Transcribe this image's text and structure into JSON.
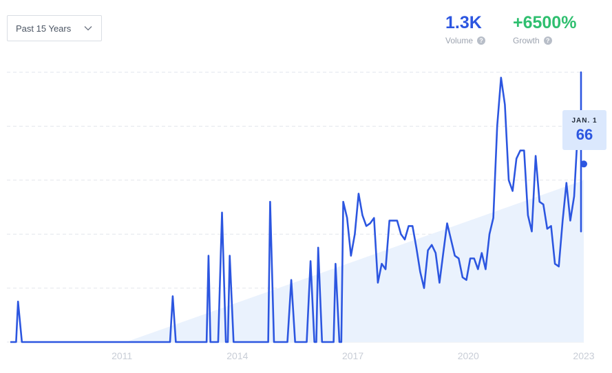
{
  "range_selector": {
    "label": "Past 15 Years",
    "icon": "chevron-down-icon"
  },
  "metrics": {
    "volume": {
      "value": "1.3K",
      "label": "Volume",
      "icon": "help-icon"
    },
    "growth": {
      "value": "+6500%",
      "label": "Growth",
      "icon": "help-icon"
    }
  },
  "tooltip": {
    "date": "JAN. 1",
    "value": "66"
  },
  "colors": {
    "line": "#2c56e0",
    "trend_fill": "#eaf2fd",
    "growth": "#2fbf6f",
    "grid": "#e2e6ec",
    "tick": "#c8cdd6"
  },
  "chart_data": {
    "type": "line",
    "title": "",
    "xlabel": "",
    "ylabel": "",
    "x_ticks": [
      "2011",
      "2014",
      "2017",
      "2020",
      "2023"
    ],
    "xlim": [
      2008.1,
      2023.0
    ],
    "ylim": [
      0,
      100
    ],
    "grid": true,
    "series": [
      {
        "values": [
          [
            2008.1,
            0
          ],
          [
            2008.25,
            0
          ],
          [
            2008.3,
            15
          ],
          [
            2008.4,
            0
          ],
          [
            2009.0,
            0
          ],
          [
            2010.0,
            0
          ],
          [
            2011.0,
            0
          ],
          [
            2012.0,
            0
          ],
          [
            2012.25,
            0
          ],
          [
            2012.32,
            17
          ],
          [
            2012.4,
            0
          ],
          [
            2013.0,
            0
          ],
          [
            2013.2,
            0
          ],
          [
            2013.25,
            32
          ],
          [
            2013.3,
            0
          ],
          [
            2013.5,
            0
          ],
          [
            2013.6,
            48
          ],
          [
            2013.7,
            0
          ],
          [
            2013.75,
            0
          ],
          [
            2013.8,
            32
          ],
          [
            2013.9,
            0
          ],
          [
            2014.5,
            0
          ],
          [
            2014.8,
            0
          ],
          [
            2014.85,
            52
          ],
          [
            2014.95,
            0
          ],
          [
            2015.3,
            0
          ],
          [
            2015.4,
            23
          ],
          [
            2015.5,
            0
          ],
          [
            2015.8,
            0
          ],
          [
            2015.9,
            30
          ],
          [
            2016.0,
            0
          ],
          [
            2016.05,
            0
          ],
          [
            2016.1,
            35
          ],
          [
            2016.2,
            0
          ],
          [
            2016.5,
            0
          ],
          [
            2016.55,
            29
          ],
          [
            2016.65,
            0
          ],
          [
            2016.7,
            0
          ],
          [
            2016.75,
            52
          ],
          [
            2016.85,
            46
          ],
          [
            2016.95,
            32
          ],
          [
            2017.05,
            40
          ],
          [
            2017.15,
            55
          ],
          [
            2017.25,
            47
          ],
          [
            2017.35,
            43
          ],
          [
            2017.45,
            44
          ],
          [
            2017.55,
            46
          ],
          [
            2017.65,
            22
          ],
          [
            2017.75,
            29
          ],
          [
            2017.85,
            27
          ],
          [
            2017.95,
            45
          ],
          [
            2018.05,
            45
          ],
          [
            2018.15,
            45
          ],
          [
            2018.25,
            40
          ],
          [
            2018.35,
            38
          ],
          [
            2018.45,
            43
          ],
          [
            2018.55,
            43
          ],
          [
            2018.65,
            35
          ],
          [
            2018.75,
            26
          ],
          [
            2018.85,
            20
          ],
          [
            2018.95,
            34
          ],
          [
            2019.05,
            36
          ],
          [
            2019.15,
            33
          ],
          [
            2019.25,
            22
          ],
          [
            2019.35,
            33
          ],
          [
            2019.45,
            44
          ],
          [
            2019.55,
            38
          ],
          [
            2019.65,
            32
          ],
          [
            2019.75,
            31
          ],
          [
            2019.85,
            24
          ],
          [
            2019.95,
            23
          ],
          [
            2020.05,
            31
          ],
          [
            2020.15,
            31
          ],
          [
            2020.25,
            27
          ],
          [
            2020.35,
            33
          ],
          [
            2020.45,
            27
          ],
          [
            2020.55,
            40
          ],
          [
            2020.65,
            46
          ],
          [
            2020.75,
            80
          ],
          [
            2020.85,
            98
          ],
          [
            2020.95,
            88
          ],
          [
            2021.05,
            60
          ],
          [
            2021.15,
            56
          ],
          [
            2021.25,
            68
          ],
          [
            2021.35,
            71
          ],
          [
            2021.45,
            71
          ],
          [
            2021.55,
            47
          ],
          [
            2021.65,
            41
          ],
          [
            2021.75,
            69
          ],
          [
            2021.85,
            52
          ],
          [
            2021.95,
            51
          ],
          [
            2022.05,
            42
          ],
          [
            2022.15,
            43
          ],
          [
            2022.25,
            29
          ],
          [
            2022.35,
            28
          ],
          [
            2022.45,
            45
          ],
          [
            2022.55,
            59
          ],
          [
            2022.65,
            45
          ],
          [
            2022.75,
            54
          ],
          [
            2022.85,
            80
          ],
          [
            2022.95,
            80
          ],
          [
            2023.05,
            68
          ],
          [
            2023.15,
            41
          ],
          [
            2023.25,
            72
          ],
          [
            2023.35,
            100
          ],
          [
            2023.45,
            95
          ],
          [
            2023.55,
            66
          ]
        ]
      }
    ],
    "trend": [
      [
        2011.1,
        0
      ],
      [
        2023.0,
        60
      ]
    ]
  }
}
